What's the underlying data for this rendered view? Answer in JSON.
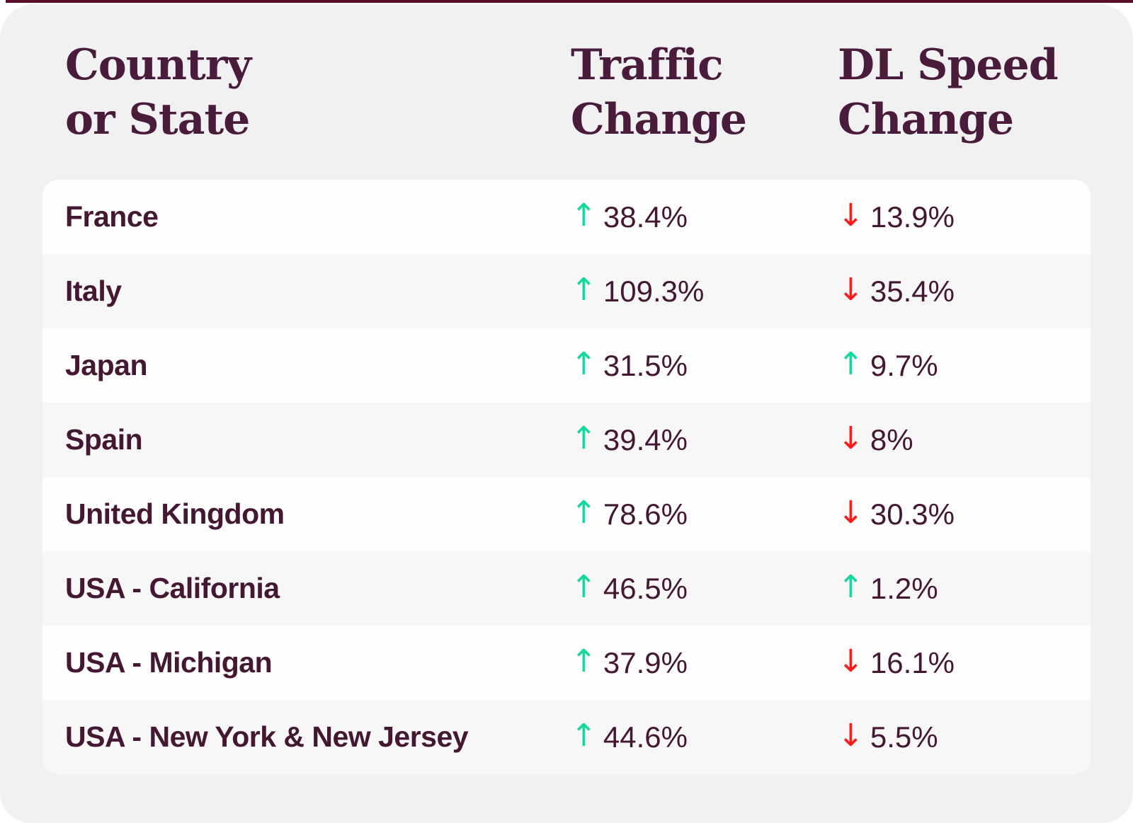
{
  "chart_data": {
    "type": "table",
    "title": "Traffic Change and DL Speed Change by Country or State",
    "columns": [
      "Country or State",
      "Traffic Change",
      "DL Speed Change"
    ],
    "rows": [
      {
        "country": "France",
        "traffic_change_pct": 38.4,
        "traffic_direction": "up",
        "dl_speed_change_pct": 13.9,
        "dl_speed_direction": "down"
      },
      {
        "country": "Italy",
        "traffic_change_pct": 109.3,
        "traffic_direction": "up",
        "dl_speed_change_pct": 35.4,
        "dl_speed_direction": "down"
      },
      {
        "country": "Japan",
        "traffic_change_pct": 31.5,
        "traffic_direction": "up",
        "dl_speed_change_pct": 9.7,
        "dl_speed_direction": "up"
      },
      {
        "country": "Spain",
        "traffic_change_pct": 39.4,
        "traffic_direction": "up",
        "dl_speed_change_pct": 8,
        "dl_speed_direction": "down"
      },
      {
        "country": "United Kingdom",
        "traffic_change_pct": 78.6,
        "traffic_direction": "up",
        "dl_speed_change_pct": 30.3,
        "dl_speed_direction": "down"
      },
      {
        "country": "USA - California",
        "traffic_change_pct": 46.5,
        "traffic_direction": "up",
        "dl_speed_change_pct": 1.2,
        "dl_speed_direction": "up"
      },
      {
        "country": "USA - Michigan",
        "traffic_change_pct": 37.9,
        "traffic_direction": "up",
        "dl_speed_change_pct": 16.1,
        "dl_speed_direction": "down"
      },
      {
        "country": "USA - New York & New Jersey",
        "traffic_change_pct": 44.6,
        "traffic_direction": "up",
        "dl_speed_change_pct": 5.5,
        "dl_speed_direction": "down"
      }
    ]
  },
  "header": {
    "col1_line1": "Country",
    "col1_line2": "or State",
    "col2_line1": "Traffic",
    "col2_line2": "Change",
    "col3_line1": "DL Speed",
    "col3_line2": "Change"
  },
  "table": {
    "rows": [
      {
        "name": "France",
        "traffic": {
          "dir": "up",
          "glyph": "↑",
          "value": "38.4%"
        },
        "dl": {
          "dir": "down",
          "glyph": "↓",
          "value": "13.9%"
        }
      },
      {
        "name": "Italy",
        "traffic": {
          "dir": "up",
          "glyph": "↑",
          "value": "109.3%"
        },
        "dl": {
          "dir": "down",
          "glyph": "↓",
          "value": "35.4%"
        }
      },
      {
        "name": "Japan",
        "traffic": {
          "dir": "up",
          "glyph": "↑",
          "value": "31.5%"
        },
        "dl": {
          "dir": "up",
          "glyph": "↑",
          "value": "9.7%"
        }
      },
      {
        "name": "Spain",
        "traffic": {
          "dir": "up",
          "glyph": "↑",
          "value": "39.4%"
        },
        "dl": {
          "dir": "down",
          "glyph": "↓",
          "value": "8%"
        }
      },
      {
        "name": "United Kingdom",
        "traffic": {
          "dir": "up",
          "glyph": "↑",
          "value": "78.6%"
        },
        "dl": {
          "dir": "down",
          "glyph": "↓",
          "value": "30.3%"
        }
      },
      {
        "name": "USA - California",
        "traffic": {
          "dir": "up",
          "glyph": "↑",
          "value": "46.5%"
        },
        "dl": {
          "dir": "up",
          "glyph": "↑",
          "value": "1.2%"
        }
      },
      {
        "name": "USA - Michigan",
        "traffic": {
          "dir": "up",
          "glyph": "↑",
          "value": "37.9%"
        },
        "dl": {
          "dir": "down",
          "glyph": "↓",
          "value": "16.1%"
        }
      },
      {
        "name": "USA - New York & New Jersey",
        "traffic": {
          "dir": "up",
          "glyph": "↑",
          "value": "44.6%"
        },
        "dl": {
          "dir": "down",
          "glyph": "↓",
          "value": "5.5%"
        }
      }
    ]
  },
  "colors": {
    "up_arrow": "#17d6a0",
    "down_arrow": "#fb1b1b",
    "text_plum": "#441733",
    "header_plum": "#4a1c3c",
    "card_background": "#f2f1f2",
    "row_white": "#fefefe",
    "row_gray": "#f8f7f8",
    "top_strip": "#5c0e24"
  }
}
